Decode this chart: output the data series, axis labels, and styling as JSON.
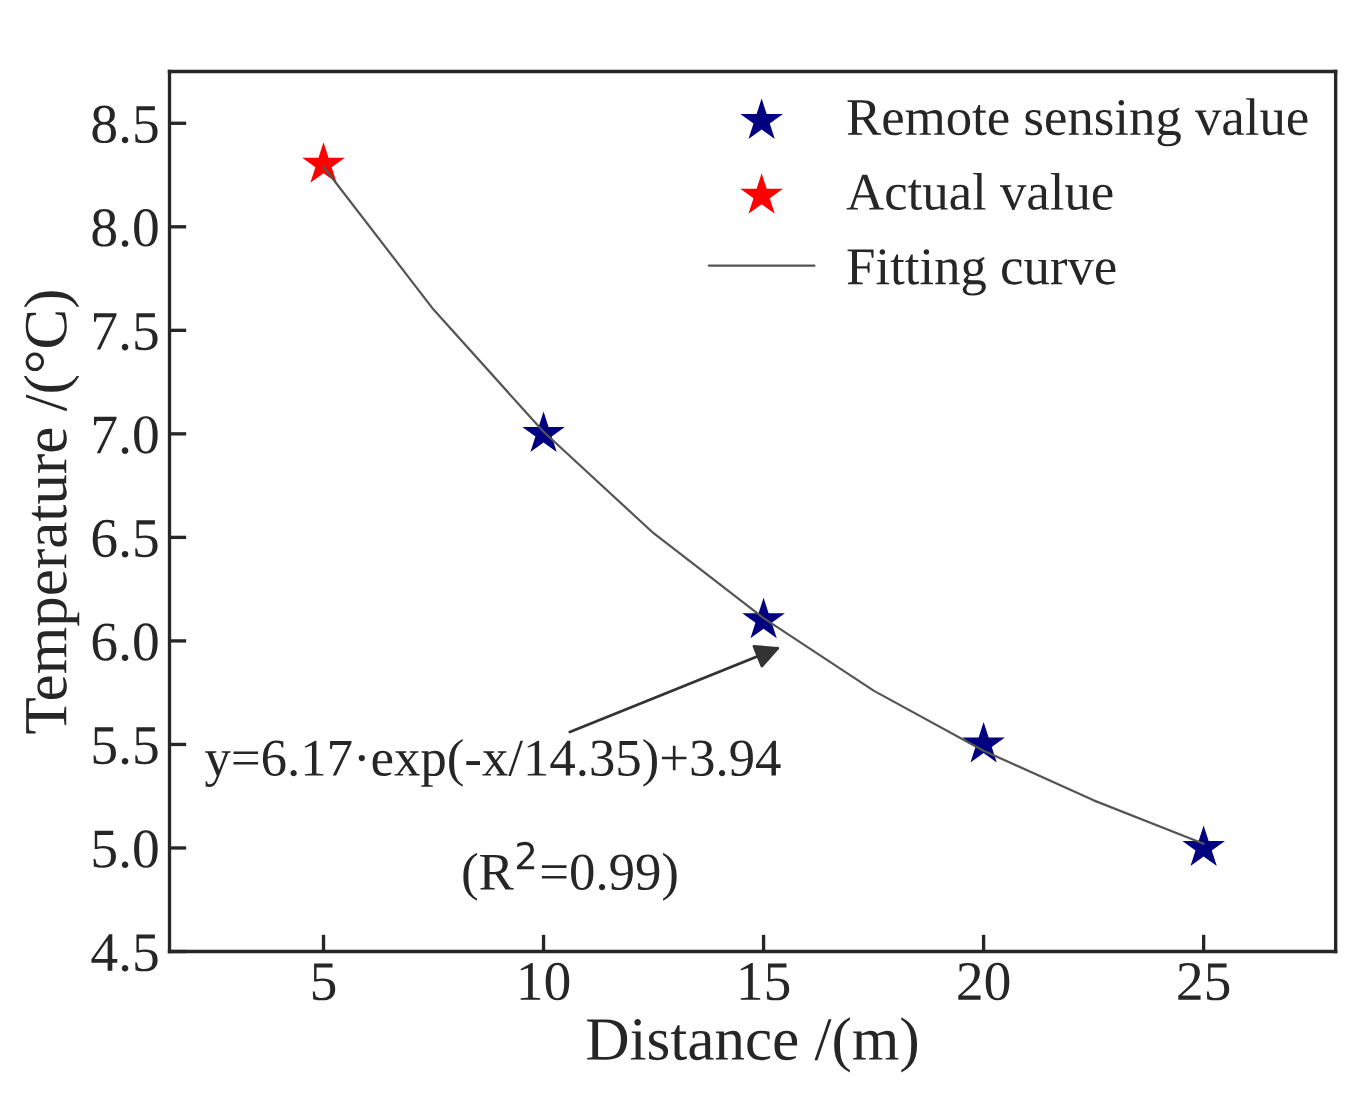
{
  "chart_data": {
    "type": "scatter",
    "xlabel": "Distance /(m)",
    "ylabel": "Temperature /(°C)",
    "xlim": [
      1.5,
      28
    ],
    "xticks": [
      5,
      10,
      15,
      20,
      25
    ],
    "ylim": [
      4.5,
      8.75
    ],
    "yticks": [
      4.5,
      {
        "value": 5,
        "label": "5.0"
      },
      5.5,
      {
        "value": 6,
        "label": "6.0"
      },
      6.5,
      {
        "value": 7,
        "label": "7.0"
      },
      7.5,
      {
        "value": 8,
        "label": "8.0"
      },
      8.5
    ],
    "series": [
      {
        "name": "Remote sensing value",
        "color": "#000080",
        "marker": "star",
        "x": [
          10,
          15,
          20,
          25
        ],
        "values": [
          7.0,
          6.1,
          5.5,
          5.0
        ]
      },
      {
        "name": "Actual value",
        "color": "#ff0000",
        "marker": "star",
        "x": [
          5
        ],
        "values": [
          8.3
        ]
      },
      {
        "name": "Fitting curve",
        "color": "#555555",
        "type": "line",
        "marker": "none",
        "x": [
          5,
          7.5,
          10,
          12.5,
          15,
          17.5,
          20,
          22.5,
          25
        ],
        "values": [
          8.29,
          7.6,
          7.01,
          6.52,
          6.11,
          5.76,
          5.47,
          5.23,
          5.02
        ]
      }
    ],
    "annotations": [
      {
        "text": "y=6.17·exp(-x/14.35)+3.94",
        "x": 15.5,
        "y": 5.98
      },
      "(R$^{2}$=0.99)"
    ],
    "legend": "top right",
    "grid": false
  }
}
